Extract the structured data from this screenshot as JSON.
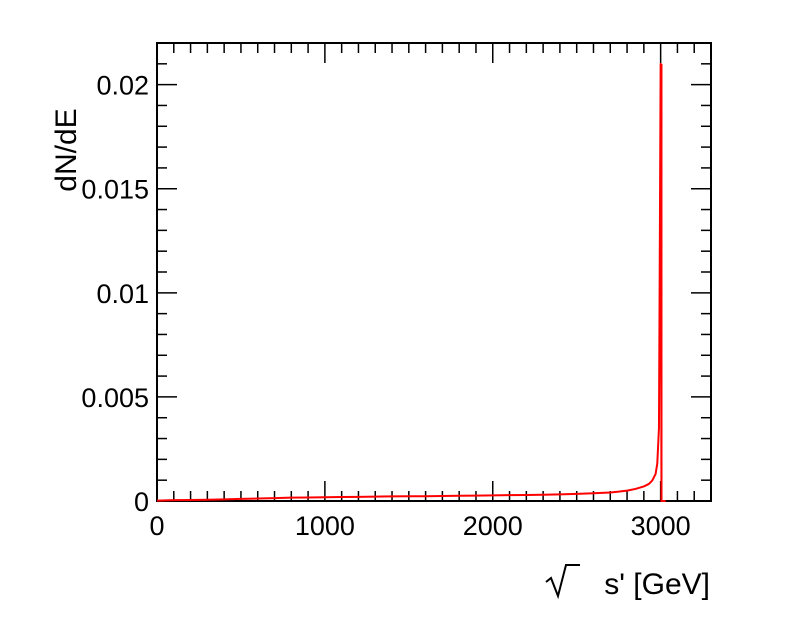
{
  "chart_data": {
    "type": "line",
    "title": "",
    "xlabel": "s' [GeV]",
    "ylabel": "dN/dE",
    "xlim": [
      0,
      3300
    ],
    "ylim": [
      0,
      0.022
    ],
    "x_ticks": [
      0,
      1000,
      2000,
      3000
    ],
    "x_tick_labels": [
      "0",
      "1000",
      "2000",
      "3000"
    ],
    "y_ticks": [
      0,
      0.005,
      0.01,
      0.015,
      0.02
    ],
    "y_tick_labels": [
      "0",
      "0.005",
      "0.01",
      "0.015",
      "0.02"
    ],
    "grid": false,
    "legend": "none",
    "series": [
      {
        "color": "#ff0000",
        "x": [
          0,
          100,
          200,
          300,
          400,
          500,
          600,
          700,
          800,
          900,
          1000,
          1100,
          1200,
          1300,
          1400,
          1500,
          1600,
          1700,
          1800,
          1900,
          2000,
          2100,
          2200,
          2300,
          2400,
          2500,
          2600,
          2700,
          2750,
          2800,
          2850,
          2900,
          2930,
          2950,
          2970,
          2980,
          2990,
          2995,
          3000,
          3005,
          3010,
          3030
        ],
        "y": [
          2e-05,
          4e-05,
          5e-05,
          6e-05,
          8e-05,
          0.0001,
          0.00012,
          0.00014,
          0.00016,
          0.00017,
          0.00018,
          0.00019,
          0.0002,
          0.00021,
          0.00022,
          0.00023,
          0.00023,
          0.00024,
          0.00025,
          0.00026,
          0.00027,
          0.00028,
          0.00029,
          0.0003,
          0.00032,
          0.00034,
          0.00037,
          0.00041,
          0.00045,
          0.0005,
          0.00058,
          0.0007,
          0.00082,
          0.00098,
          0.0013,
          0.0018,
          0.0035,
          0.012,
          0.021,
          0,
          0,
          0
        ]
      }
    ]
  }
}
